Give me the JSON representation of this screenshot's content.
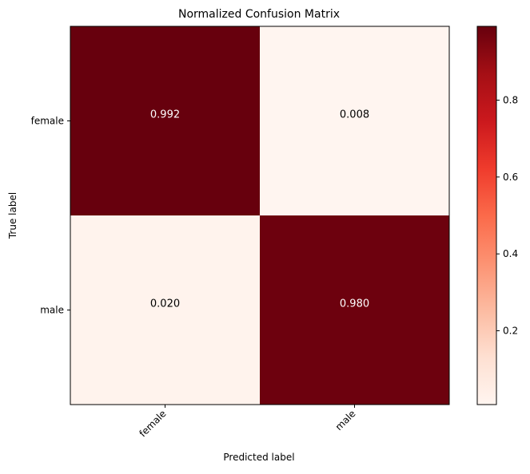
{
  "chart_data": {
    "type": "heatmap",
    "title": "Normalized Confusion Matrix",
    "xlabel": "Predicted label",
    "ylabel": "True label",
    "x_categories": [
      "female",
      "male"
    ],
    "y_categories": [
      "female",
      "male"
    ],
    "values": [
      [
        0.992,
        0.008
      ],
      [
        0.02,
        0.98
      ]
    ],
    "value_labels": [
      [
        "0.992",
        "0.008"
      ],
      [
        "0.020",
        "0.980"
      ]
    ],
    "colormap": "Reds",
    "color_range": [
      0.008,
      0.992
    ],
    "colorbar_ticks": [
      0.2,
      0.4,
      0.6,
      0.8
    ],
    "colorbar_tick_labels": [
      "0.2",
      "0.4",
      "0.6",
      "0.8"
    ],
    "x_tick_rotation_deg": 45,
    "colors": {
      "low": "#fff5f0",
      "high": "#67000d",
      "text_dark_cell": "#ffffff",
      "text_light_cell": "#000000"
    }
  }
}
